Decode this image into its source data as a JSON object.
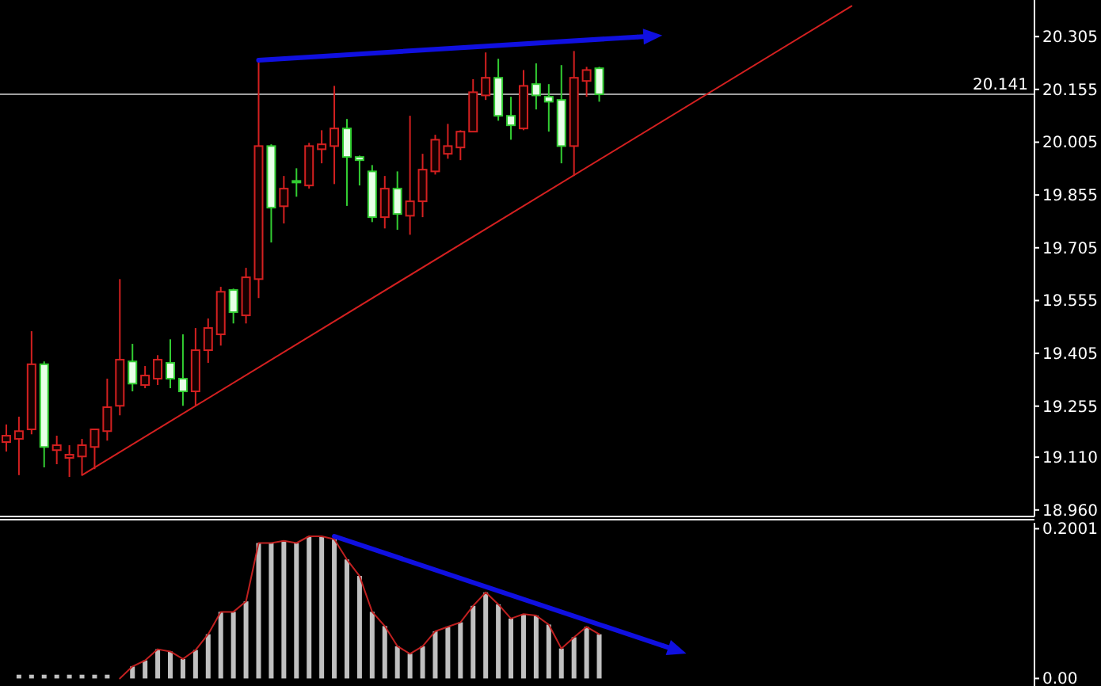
{
  "chart_data": [
    {
      "type": "candlestick",
      "categories": [
        null,
        null,
        null,
        null,
        null,
        null,
        null,
        null,
        null,
        null,
        null,
        null,
        null,
        null,
        null,
        null,
        null,
        null,
        null,
        null,
        null,
        null,
        null,
        null,
        null,
        null,
        null,
        null,
        null,
        null,
        null,
        null,
        null,
        null,
        null,
        null,
        null,
        null,
        null,
        null,
        null,
        null,
        null,
        null,
        null,
        null,
        null,
        null,
        null,
        null,
        null,
        null,
        null,
        null,
        null,
        null,
        null,
        null,
        null,
        null,
        null,
        null,
        null,
        null,
        null,
        null,
        null,
        null,
        null,
        null,
        null,
        null,
        null,
        null,
        null,
        null,
        null,
        null,
        null,
        null,
        null,
        null
      ],
      "ohlc": [
        [
          19.153,
          19.203,
          19.126,
          19.171
        ],
        [
          19.162,
          19.225,
          19.059,
          19.184
        ],
        [
          19.189,
          19.468,
          19.175,
          19.374
        ],
        [
          19.374,
          19.382,
          19.081,
          19.139
        ],
        [
          19.13,
          19.171,
          19.09,
          19.144
        ],
        [
          19.108,
          19.144,
          19.054,
          19.117
        ],
        [
          19.112,
          19.162,
          19.059,
          19.144
        ],
        [
          19.139,
          19.189,
          19.076,
          19.189
        ],
        [
          19.184,
          19.333,
          19.157,
          19.252
        ],
        [
          19.256,
          19.616,
          19.229,
          19.387
        ],
        [
          19.382,
          19.432,
          19.297,
          19.319
        ],
        [
          19.315,
          19.369,
          19.306,
          19.342
        ],
        [
          19.333,
          19.4,
          19.315,
          19.387
        ],
        [
          19.378,
          19.445,
          19.306,
          19.333
        ],
        [
          19.333,
          19.459,
          19.256,
          19.297
        ],
        [
          19.297,
          19.477,
          19.256,
          19.414
        ],
        [
          19.414,
          19.504,
          19.378,
          19.477
        ],
        [
          19.459,
          19.594,
          19.427,
          19.58
        ],
        [
          19.585,
          19.589,
          19.49,
          19.522
        ],
        [
          19.513,
          19.648,
          19.49,
          19.621
        ],
        [
          19.616,
          20.238,
          19.562,
          19.994
        ],
        [
          19.994,
          19.999,
          19.72,
          19.819
        ],
        [
          19.823,
          19.909,
          19.774,
          19.873
        ],
        [
          19.895,
          19.931,
          19.85,
          19.891
        ],
        [
          19.882,
          20.003,
          19.873,
          19.994
        ],
        [
          19.985,
          20.039,
          19.945,
          19.999
        ],
        [
          19.994,
          20.165,
          19.886,
          20.044
        ],
        [
          20.044,
          20.071,
          19.824,
          19.963
        ],
        [
          19.963,
          19.967,
          19.882,
          19.954
        ],
        [
          19.922,
          19.94,
          19.778,
          19.792
        ],
        [
          19.792,
          19.909,
          19.76,
          19.873
        ],
        [
          19.873,
          19.922,
          19.756,
          19.801
        ],
        [
          19.796,
          20.08,
          19.742,
          19.837
        ],
        [
          19.837,
          19.972,
          19.792,
          19.927
        ],
        [
          19.922,
          20.026,
          19.913,
          20.012
        ],
        [
          19.972,
          20.057,
          19.958,
          19.994
        ],
        [
          19.99,
          20.039,
          19.954,
          20.035
        ],
        [
          20.035,
          20.184,
          20.035,
          20.147
        ],
        [
          20.138,
          20.26,
          20.125,
          20.188
        ],
        [
          20.188,
          20.242,
          20.066,
          20.08
        ],
        [
          20.08,
          20.134,
          20.012,
          20.053
        ],
        [
          20.044,
          20.21,
          20.039,
          20.165
        ],
        [
          20.17,
          20.229,
          20.098,
          20.138
        ],
        [
          20.134,
          20.17,
          20.035,
          20.12
        ],
        [
          20.125,
          20.224,
          19.945,
          19.994
        ],
        [
          19.994,
          20.264,
          19.909,
          20.188
        ],
        [
          20.179,
          20.219,
          20.134,
          20.21
        ],
        [
          20.215,
          20.219,
          20.12,
          20.141
        ],
        null,
        null,
        null,
        null,
        null,
        null,
        null,
        null,
        null,
        null,
        null,
        null,
        null,
        null,
        null,
        null,
        null,
        null,
        null,
        null,
        null,
        null,
        null,
        null,
        null,
        null,
        null,
        null,
        null,
        null,
        null,
        null,
        null,
        null
      ],
      "colors": [
        "#d42020",
        "#d42020",
        "#d42020",
        "#32cd32",
        "#d42020",
        "#d42020",
        "#d42020",
        "#d42020",
        "#d42020",
        "#d42020",
        "#32cd32",
        "#d42020",
        "#d42020",
        "#32cd32",
        "#32cd32",
        "#d42020",
        "#d42020",
        "#d42020",
        "#32cd32",
        "#d42020",
        "#d42020",
        "#32cd32",
        "#d42020",
        "#32cd32",
        "#d42020",
        "#d42020",
        "#d42020",
        "#32cd32",
        "#32cd32",
        "#32cd32",
        "#d42020",
        "#32cd32",
        "#d42020",
        "#d42020",
        "#d42020",
        "#d42020",
        "#d42020",
        "#d42020",
        "#d42020",
        "#32cd32",
        "#32cd32",
        "#d42020",
        "#32cd32",
        "#32cd32",
        "#32cd32",
        "#d42020",
        "#d42020",
        "#32cd32",
        null,
        null,
        null,
        null,
        null,
        null,
        null,
        null,
        null,
        null,
        null,
        null,
        null,
        null,
        null,
        null,
        null,
        null,
        null,
        null,
        null,
        null,
        null,
        null,
        null,
        null,
        null,
        null,
        null,
        null,
        null,
        null,
        null,
        null
      ],
      "series": [
        {
          "type": "line",
          "color": "#d42020",
          "values": [
            null,
            null,
            null,
            null,
            null,
            null,
            19.059,
            null,
            null,
            null,
            null,
            null,
            null,
            null,
            null,
            null,
            null,
            null,
            null,
            null,
            null,
            null,
            null,
            null,
            null,
            null,
            null,
            null,
            null,
            null,
            null,
            null,
            null,
            null,
            null,
            null,
            null,
            null,
            null,
            null,
            null,
            null,
            null,
            null,
            null,
            null,
            null,
            null,
            null,
            null,
            null,
            null,
            null,
            null,
            null,
            null,
            null,
            null,
            null,
            null,
            null,
            null,
            null,
            null,
            null,
            null,
            null,
            20.392,
            null,
            null,
            null,
            null,
            null,
            null,
            null,
            null,
            null,
            null,
            null,
            null,
            null,
            null
          ]
        },
        {
          "type": "line",
          "color": "#1010e0",
          "values": [
            null,
            null,
            null,
            null,
            null,
            null,
            null,
            null,
            null,
            null,
            null,
            null,
            null,
            null,
            null,
            null,
            null,
            null,
            null,
            null,
            20.238,
            null,
            null,
            null,
            null,
            null,
            null,
            null,
            null,
            null,
            null,
            null,
            null,
            null,
            null,
            null,
            null,
            null,
            null,
            null,
            null,
            null,
            null,
            null,
            null,
            null,
            null,
            null,
            null,
            null,
            20.304,
            null,
            null,
            null,
            null,
            null,
            null,
            null,
            null,
            null,
            null,
            null,
            null,
            null,
            null,
            null,
            null,
            null,
            null,
            null,
            null,
            null,
            null,
            null,
            null,
            null,
            null,
            null,
            null,
            null,
            null,
            null
          ]
        }
      ],
      "ylim": [
        18.946,
        20.409
      ],
      "yticks": [
        20.305,
        20.155,
        20.005,
        19.855,
        19.705,
        19.555,
        19.405,
        19.255,
        {
          "value": 19.11,
          "label": "19.110"
        },
        {
          "value": 18.96,
          "label": "18.960"
        }
      ],
      "tick_labels": "y",
      "ref_lines": [
        {
          "axis": "y",
          "value": 20.141,
          "label": "20.141",
          "color": "#a0a0a0"
        }
      ]
    },
    {
      "type": "bar",
      "categories": [
        null,
        null,
        null,
        null,
        null,
        null,
        null,
        null,
        null,
        null,
        null,
        null,
        null,
        null,
        null,
        null,
        null,
        null,
        null,
        null,
        null,
        null,
        null,
        null,
        null,
        null,
        null,
        null,
        null,
        null,
        null,
        null,
        null,
        null,
        null,
        null,
        null,
        null,
        null,
        null,
        null,
        null,
        null,
        null,
        null,
        null,
        null,
        null,
        null,
        null,
        null,
        null,
        null,
        null,
        null,
        null,
        null,
        null,
        null,
        null,
        null,
        null,
        null,
        null,
        null,
        null,
        null,
        null,
        null,
        null,
        null,
        null,
        null,
        null,
        null,
        null,
        null,
        null,
        null,
        null,
        null,
        null
      ],
      "series": [
        {
          "type": "bar",
          "color": "#c0c0c0",
          "values": [
            null,
            0.005,
            0.005,
            0.005,
            0.005,
            0.005,
            0.005,
            0.005,
            0.005,
            0,
            0.016,
            0.024,
            0.039,
            0.036,
            0.026,
            0.038,
            0.059,
            0.089,
            0.089,
            0.103,
            0.181,
            0.181,
            0.184,
            0.181,
            0.19,
            0.19,
            0.186,
            0.159,
            0.137,
            0.089,
            0.07,
            0.043,
            0.033,
            0.043,
            0.063,
            0.069,
            0.075,
            0.097,
            0.115,
            0.099,
            0.08,
            0.086,
            0.084,
            0.072,
            0.04,
            0.055,
            0.069,
            0.059,
            null,
            null,
            null,
            null,
            null,
            null,
            null,
            null,
            null,
            null,
            null,
            null,
            null,
            null,
            null,
            null,
            null,
            null,
            null,
            null,
            null,
            null,
            null,
            null,
            null,
            null,
            null,
            null,
            null,
            null,
            null,
            null,
            null,
            null
          ]
        },
        {
          "type": "line",
          "color": "#c02020",
          "values": [
            null,
            null,
            null,
            null,
            null,
            null,
            null,
            null,
            null,
            0,
            0.016,
            0.024,
            0.039,
            0.036,
            0.026,
            0.038,
            0.059,
            0.089,
            0.089,
            0.103,
            0.181,
            0.181,
            0.184,
            0.181,
            0.19,
            0.19,
            0.186,
            0.159,
            0.137,
            0.089,
            0.07,
            0.043,
            0.033,
            0.043,
            0.063,
            0.069,
            0.075,
            0.097,
            0.115,
            0.099,
            0.08,
            0.086,
            0.084,
            0.072,
            0.04,
            0.055,
            0.069,
            0.059,
            null,
            null,
            null,
            null,
            null,
            null,
            null,
            null,
            null,
            null,
            null,
            null,
            null,
            null,
            null,
            null,
            null,
            null,
            null,
            null,
            null,
            null,
            null,
            null,
            null,
            null,
            null,
            null,
            null,
            null,
            null,
            null,
            null,
            null
          ]
        },
        {
          "type": "line",
          "color": "#1010e0",
          "values": [
            null,
            null,
            null,
            null,
            null,
            null,
            null,
            null,
            null,
            null,
            null,
            null,
            null,
            null,
            null,
            null,
            null,
            null,
            null,
            null,
            null,
            null,
            null,
            null,
            null,
            null,
            0.19,
            null,
            null,
            null,
            null,
            null,
            null,
            null,
            null,
            null,
            null,
            null,
            null,
            null,
            null,
            null,
            null,
            null,
            null,
            null,
            null,
            null,
            null,
            null,
            null,
            null,
            0.044,
            null,
            null,
            null,
            null,
            null,
            null,
            null,
            null,
            null,
            null,
            null,
            null,
            null,
            null,
            null,
            null,
            null,
            null,
            null,
            null,
            null,
            null,
            null,
            null,
            null,
            null,
            null,
            null,
            null
          ]
        }
      ],
      "ylim": [
        -0.008,
        0.208
      ],
      "yticks": [
        {
          "value": 0,
          "label": "0.00"
        },
        0.2001
      ],
      "tick_labels": "y"
    }
  ]
}
